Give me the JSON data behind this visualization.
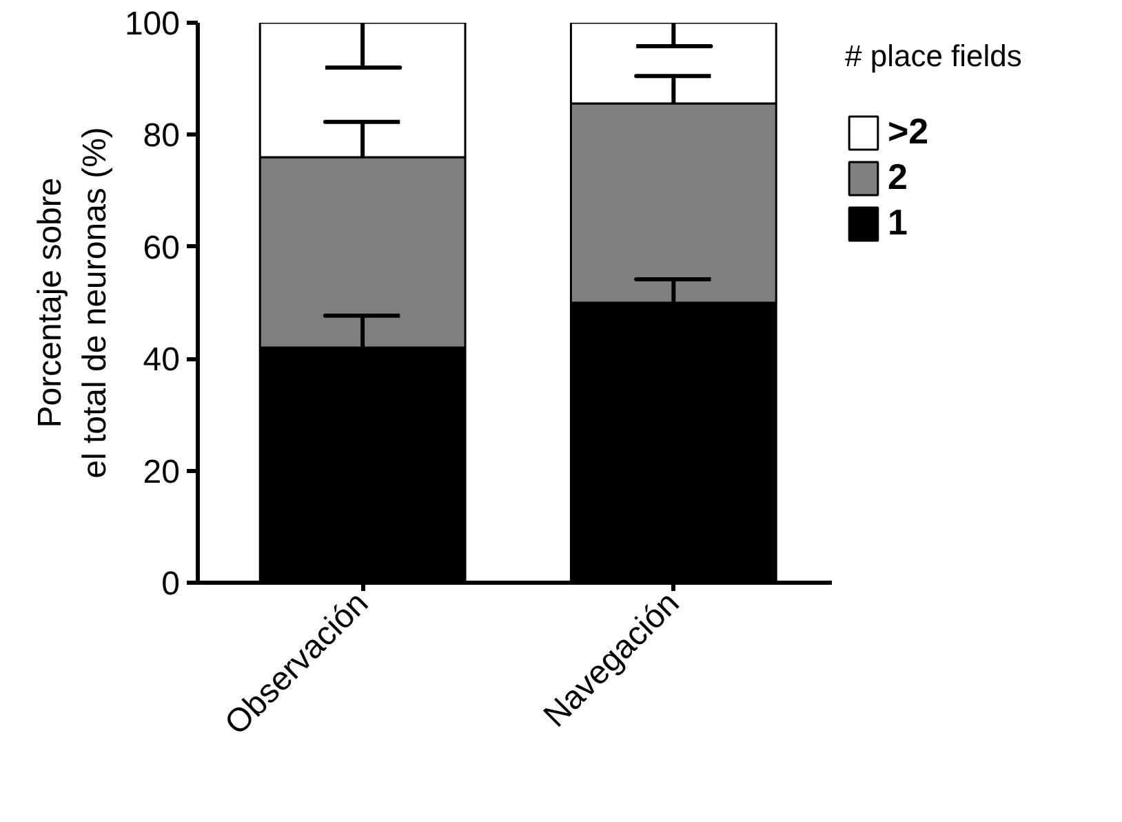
{
  "chart_data": {
    "type": "bar",
    "stacked": true,
    "categories": [
      "Observación",
      "Navegación"
    ],
    "ylabel": "Porcentaje sobre\nel total de neuronas (%)",
    "legend_title": "# place fields",
    "legend": "right",
    "grid": false,
    "ylim": [
      0,
      100
    ],
    "yticks": [
      0,
      20,
      40,
      60,
      80,
      100
    ],
    "series": [
      {
        "name": "1",
        "color": "#000000",
        "values": [
          42,
          50
        ],
        "errors": [
          [
            42,
            47.7
          ],
          [
            50,
            54.2
          ]
        ]
      },
      {
        "name": "2",
        "color": "#808080",
        "values": [
          34,
          35.6
        ],
        "errors": [
          [
            76,
            82.3
          ],
          [
            85.6,
            90.5
          ]
        ]
      },
      {
        "name": ">2",
        "color": "#ffffff",
        "values": [
          24,
          14.4
        ],
        "errors": [
          [
            92,
            100
          ],
          [
            95.8,
            100
          ]
        ]
      }
    ]
  }
}
